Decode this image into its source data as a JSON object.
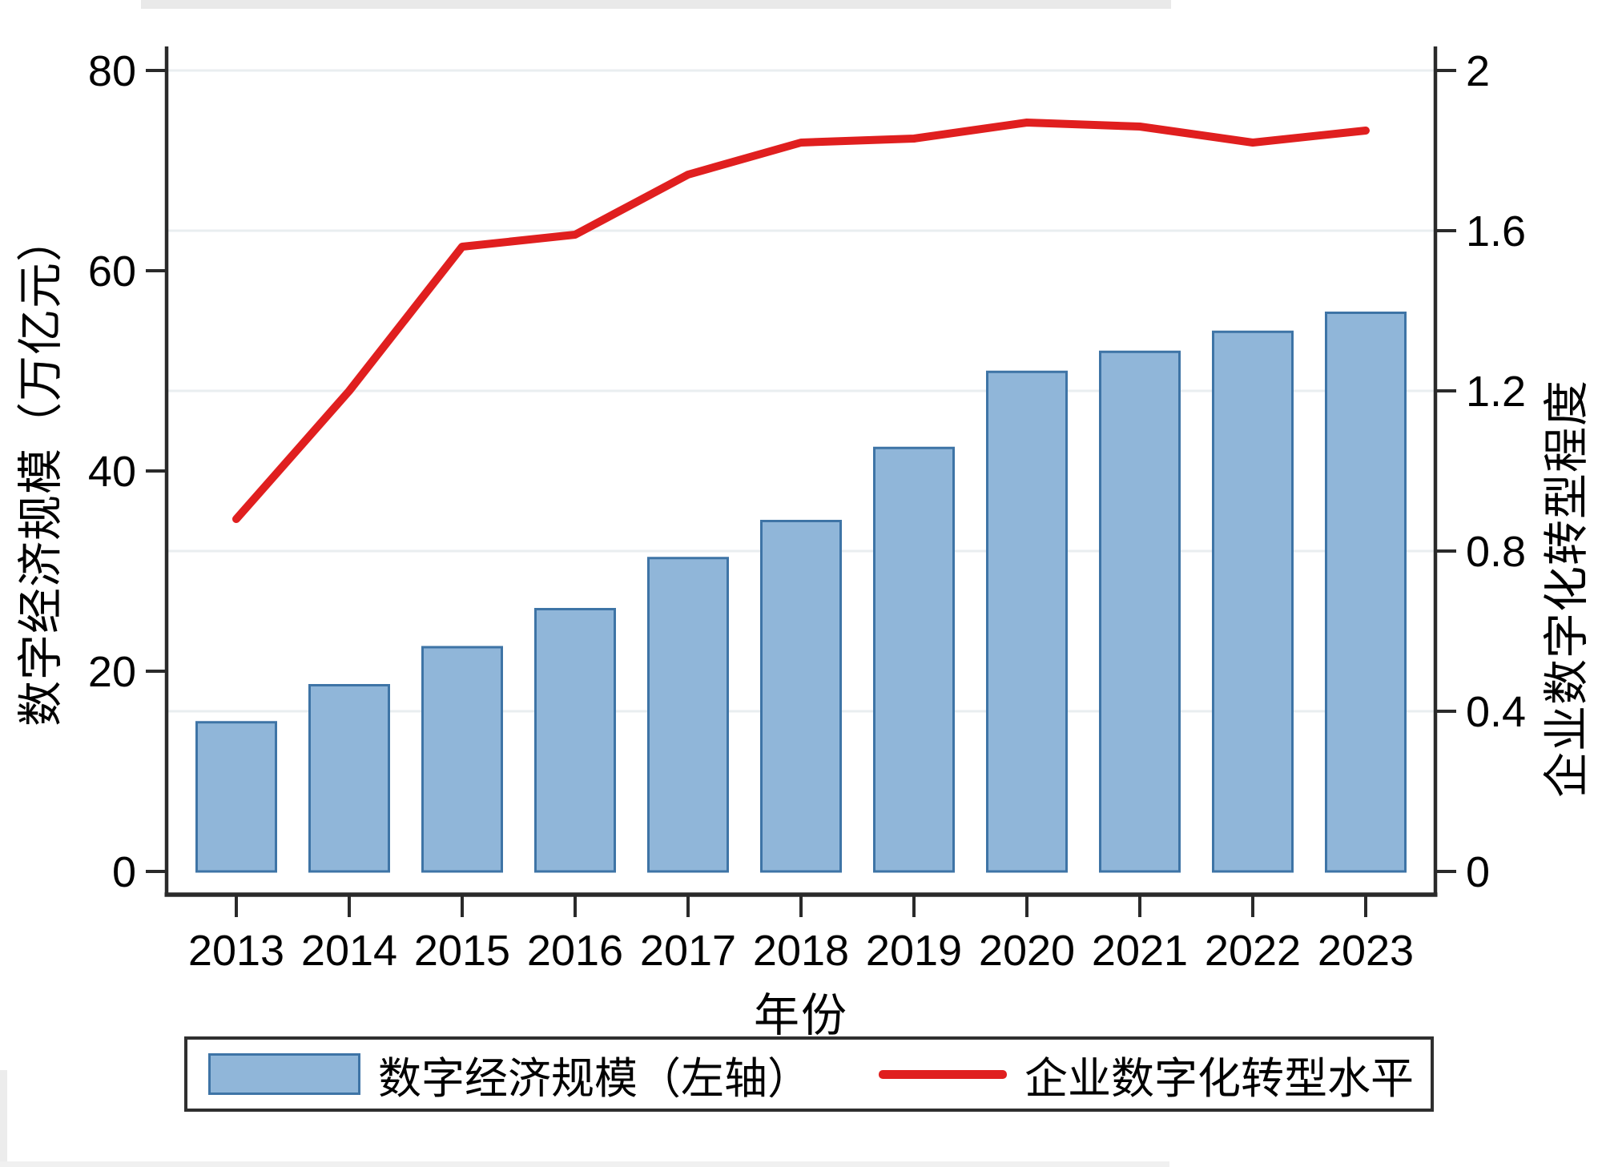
{
  "chart_data": {
    "type": "bar",
    "title": "",
    "categories": [
      "2013",
      "2014",
      "2015",
      "2016",
      "2017",
      "2018",
      "2019",
      "2020",
      "2021",
      "2022",
      "2023"
    ],
    "series": [
      {
        "name": "数字经济规模（左轴）",
        "kind": "bar",
        "axis": "left",
        "values": [
          14.9,
          18.6,
          22.4,
          26.2,
          31.3,
          35.0,
          42.3,
          49.9,
          51.9,
          53.9,
          55.8
        ]
      },
      {
        "name": "企业数字化转型水平",
        "kind": "line",
        "axis": "right",
        "values": [
          0.88,
          1.2,
          1.56,
          1.59,
          1.74,
          1.82,
          1.83,
          1.87,
          1.86,
          1.82,
          1.85
        ]
      }
    ],
    "xlabel": "年份",
    "ylabel_left": "数字经济规模（万亿元）",
    "ylabel_right": "企业数字化转型程度",
    "left_axis": {
      "min": 0,
      "max": 80,
      "ticks": [
        0,
        20,
        40,
        60,
        80
      ],
      "tick_labels": [
        "0",
        "20",
        "40",
        "60",
        "80"
      ]
    },
    "right_axis": {
      "min": 0,
      "max": 2,
      "ticks": [
        0,
        0.4,
        0.8,
        1.2,
        1.6,
        2
      ],
      "tick_labels": [
        "0",
        "0.4",
        "0.8",
        "1.2",
        "1.6",
        "2"
      ]
    },
    "grid": "horizontal gridlines at right-axis tick positions",
    "legend_position": "bottom",
    "colors": {
      "bar_fill": "#90b6d9",
      "bar_border": "#3e74a6",
      "line": "#e01f1f",
      "grid": "#e9eef0",
      "axis": "#2a2a2a",
      "text": "#000000"
    }
  }
}
